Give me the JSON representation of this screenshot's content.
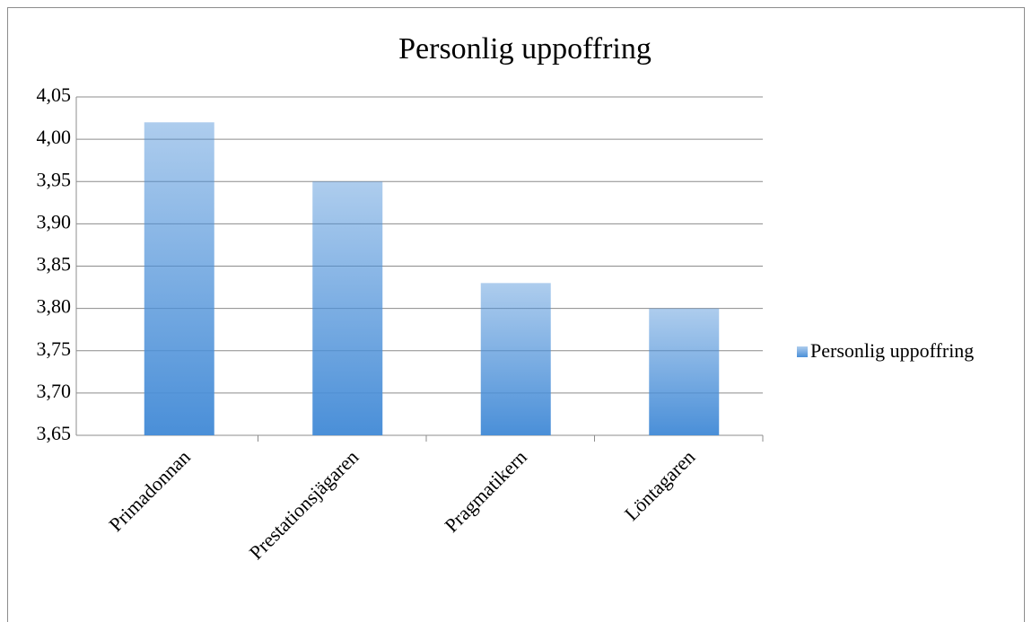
{
  "chart_data": {
    "type": "bar",
    "title": "Personlig uppoffring",
    "categories": [
      "Primadonnan",
      "Prestationsjägaren",
      "Pragmatikern",
      "Löntagaren"
    ],
    "series": [
      {
        "name": "Personlig uppoffring",
        "color": "#4a8fd8",
        "values": [
          4.02,
          3.95,
          3.83,
          3.8
        ]
      }
    ],
    "ylim": [
      3.65,
      4.05
    ],
    "yticks": [
      {
        "value": 3.65,
        "label": "3,65"
      },
      {
        "value": 3.7,
        "label": "3,70"
      },
      {
        "value": 3.75,
        "label": "3,75"
      },
      {
        "value": 3.8,
        "label": "3,80"
      },
      {
        "value": 3.85,
        "label": "3,85"
      },
      {
        "value": 3.9,
        "label": "3,90"
      },
      {
        "value": 3.95,
        "label": "3,95"
      },
      {
        "value": 4.0,
        "label": "4,00"
      },
      {
        "value": 4.05,
        "label": "4,05"
      }
    ],
    "grid": true,
    "legend": "right"
  }
}
